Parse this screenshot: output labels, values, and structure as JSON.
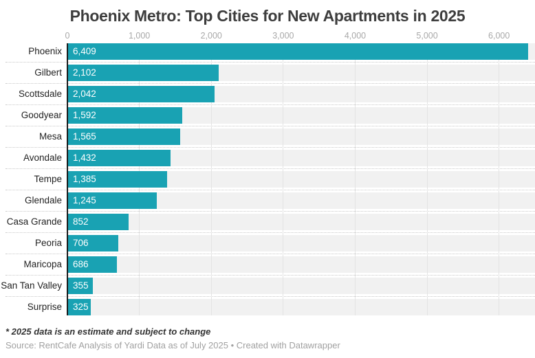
{
  "title": "Phoenix Metro: Top Cities for New Apartments in 2025",
  "footnote": "* 2025 data is an estimate and subject to change",
  "source": "Source: RentCafe Analysis of Yardi Data as of July 2025 • Created with Datawrapper",
  "colors": {
    "bar": "#19a2b3",
    "track": "#f1f1f1",
    "gridline": "#e3e3e3",
    "separator_dots": "#c8c8c8",
    "axis_line": "#1a1a1a",
    "tick_label": "#a8a8a8",
    "title_text": "#3d3d3d",
    "category_label": "#222222",
    "value_label": "#ffffff",
    "footnote_text": "#333333",
    "source_text": "#a0a0a0"
  },
  "chart_data": {
    "type": "bar",
    "orientation": "horizontal",
    "title": "Phoenix Metro: Top Cities for New Apartments in 2025",
    "categories": [
      "Phoenix",
      "Gilbert",
      "Scottsdale",
      "Goodyear",
      "Mesa",
      "Avondale",
      "Tempe",
      "Glendale",
      "Casa Grande",
      "Peoria",
      "Maricopa",
      "San Tan Valley",
      "Surprise"
    ],
    "values": [
      6409,
      2102,
      2042,
      1592,
      1565,
      1432,
      1385,
      1245,
      852,
      706,
      686,
      355,
      325
    ],
    "value_labels": [
      "6,409",
      "2,102",
      "2,042",
      "1,592",
      "1,565",
      "1,432",
      "1,385",
      "1,245",
      "852",
      "706",
      "686",
      "355",
      "325"
    ],
    "axis_ticks": [
      {
        "value": 0,
        "label": "0"
      },
      {
        "value": 1000,
        "label": "1,000"
      },
      {
        "value": 2000,
        "label": "2,000"
      },
      {
        "value": 3000,
        "label": "3,000"
      },
      {
        "value": 4000,
        "label": "4,000"
      },
      {
        "value": 5000,
        "label": "5,000"
      },
      {
        "value": 6000,
        "label": "6,000"
      }
    ],
    "xlim": [
      0,
      6500
    ],
    "xlabel": "",
    "ylabel": "",
    "grid": "vertical solid gridlines; dotted horizontal row separators",
    "legend": "none",
    "value_label_position": "inside-start"
  }
}
